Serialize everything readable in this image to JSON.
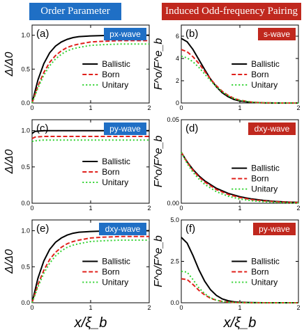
{
  "headers": {
    "left": "Order Parameter",
    "right": "Induced Odd-frequency Pairing"
  },
  "xlabel": "x/ξ_b",
  "ylabels": {
    "left": "Δ/Δ0",
    "right": "F^o/F^e_b"
  },
  "colors": {
    "ballistic": "#000000",
    "born": "#e0201b",
    "unitary": "#2fd22f",
    "blue_badge": "#1f6fc5",
    "red_badge": "#c0281e"
  },
  "chart_data": [
    {
      "panel": "(a)",
      "badge": "px-wave",
      "badge_color": "blue",
      "type": "line",
      "xlim": [
        0,
        2
      ],
      "ylim": [
        0,
        1.15
      ],
      "xticks": [
        "0",
        "1",
        "2"
      ],
      "yticks": [
        "0.0",
        "0.5",
        "1.0"
      ],
      "series": [
        {
          "name": "Ballistic",
          "x": [
            0,
            0.1,
            0.2,
            0.3,
            0.4,
            0.5,
            0.6,
            0.7,
            0.8,
            1.0,
            1.2,
            1.5,
            2.0
          ],
          "y": [
            0,
            0.34,
            0.58,
            0.74,
            0.84,
            0.9,
            0.94,
            0.965,
            0.98,
            0.99,
            0.995,
            1.0,
            1.0
          ]
        },
        {
          "name": "Born",
          "x": [
            0,
            0.1,
            0.2,
            0.3,
            0.4,
            0.5,
            0.6,
            0.7,
            0.8,
            1.0,
            1.2,
            1.5,
            2.0
          ],
          "y": [
            0,
            0.25,
            0.45,
            0.6,
            0.7,
            0.77,
            0.82,
            0.85,
            0.87,
            0.9,
            0.91,
            0.92,
            0.92
          ]
        },
        {
          "name": "Unitary",
          "x": [
            0,
            0.1,
            0.2,
            0.3,
            0.4,
            0.5,
            0.6,
            0.7,
            0.8,
            1.0,
            1.2,
            1.5,
            2.0
          ],
          "y": [
            0,
            0.22,
            0.41,
            0.55,
            0.65,
            0.72,
            0.77,
            0.8,
            0.82,
            0.85,
            0.86,
            0.87,
            0.87
          ]
        }
      ]
    },
    {
      "panel": "(b)",
      "badge": "s-wave",
      "badge_color": "red",
      "type": "line",
      "xlim": [
        0,
        2
      ],
      "ylim": [
        0,
        7
      ],
      "xticks": [
        "0",
        "1",
        "2"
      ],
      "yticks": [
        "0",
        "2",
        "4",
        "6"
      ],
      "series": [
        {
          "name": "Ballistic",
          "x": [
            0,
            0.1,
            0.2,
            0.3,
            0.4,
            0.5,
            0.6,
            0.7,
            0.8,
            0.9,
            1.0,
            1.2,
            1.4,
            1.6,
            2.0
          ],
          "y": [
            5.8,
            5.5,
            4.8,
            3.9,
            3.0,
            2.15,
            1.45,
            0.92,
            0.56,
            0.32,
            0.18,
            0.05,
            0.01,
            0,
            0
          ]
        },
        {
          "name": "Born",
          "x": [
            0,
            0.1,
            0.2,
            0.3,
            0.4,
            0.5,
            0.6,
            0.7,
            0.8,
            0.9,
            1.0,
            1.2,
            1.4,
            1.6,
            2.0
          ],
          "y": [
            4.8,
            4.6,
            4.15,
            3.55,
            2.85,
            2.15,
            1.55,
            1.05,
            0.68,
            0.42,
            0.25,
            0.08,
            0.02,
            0,
            0
          ]
        },
        {
          "name": "Unitary",
          "x": [
            0,
            0.1,
            0.2,
            0.3,
            0.4,
            0.5,
            0.6,
            0.7,
            0.8,
            0.9,
            1.0,
            1.2,
            1.4,
            1.6,
            2.0
          ],
          "y": [
            4.2,
            4.05,
            3.7,
            3.2,
            2.6,
            2.0,
            1.45,
            1.0,
            0.65,
            0.4,
            0.24,
            0.08,
            0.02,
            0,
            0
          ]
        }
      ]
    },
    {
      "panel": "(c)",
      "badge": "py-wave",
      "badge_color": "blue",
      "type": "line",
      "xlim": [
        0,
        2
      ],
      "ylim": [
        0,
        1.15
      ],
      "xticks": [
        "0",
        "1",
        "2"
      ],
      "yticks": [
        "0.0",
        "0.5",
        "1.0"
      ],
      "series": [
        {
          "name": "Ballistic",
          "x": [
            0,
            0.05,
            0.2,
            2.0
          ],
          "y": [
            0.96,
            0.99,
            1.0,
            1.0
          ]
        },
        {
          "name": "Born",
          "x": [
            0,
            0.05,
            0.2,
            2.0
          ],
          "y": [
            0.89,
            0.91,
            0.92,
            0.92
          ]
        },
        {
          "name": "Unitary",
          "x": [
            0,
            0.05,
            0.2,
            2.0
          ],
          "y": [
            0.85,
            0.86,
            0.87,
            0.87
          ]
        }
      ]
    },
    {
      "panel": "(d)",
      "badge": "dxy-wave",
      "badge_color": "red",
      "type": "line",
      "xlim": [
        0,
        2
      ],
      "ylim": [
        0,
        0.05
      ],
      "xticks": [
        "0",
        "1",
        "2"
      ],
      "yticks": [
        "0.00",
        "0.05"
      ],
      "series": [
        {
          "name": "Ballistic",
          "x": [
            0,
            0.1,
            0.2,
            0.3,
            0.4,
            0.6,
            0.8,
            1.0,
            1.2,
            1.4,
            1.6,
            1.8,
            2.0
          ],
          "y": [
            0.0305,
            0.0248,
            0.0202,
            0.0164,
            0.0134,
            0.0089,
            0.0059,
            0.0039,
            0.0026,
            0.0017,
            0.0011,
            0.0007,
            0.0005
          ]
        },
        {
          "name": "Born",
          "x": [
            0,
            0.1,
            0.2,
            0.3,
            0.4,
            0.6,
            0.8,
            1.0,
            1.2,
            1.4,
            1.6,
            1.8,
            2.0
          ],
          "y": [
            0.0305,
            0.0245,
            0.0197,
            0.0158,
            0.0127,
            0.0082,
            0.0053,
            0.0034,
            0.0022,
            0.0014,
            0.0009,
            0.0006,
            0.0004
          ]
        },
        {
          "name": "Unitary",
          "x": [
            0,
            0.1,
            0.2,
            0.3,
            0.4,
            0.6,
            0.8,
            1.0,
            1.2,
            1.4,
            1.6,
            1.8,
            2.0
          ],
          "y": [
            0.0305,
            0.0238,
            0.0186,
            0.0145,
            0.0113,
            0.0069,
            0.0042,
            0.0025,
            0.0015,
            0.0009,
            0.0006,
            0.0003,
            0.0002
          ]
        }
      ]
    },
    {
      "panel": "(e)",
      "badge": "dxy-wave",
      "badge_color": "blue",
      "type": "line",
      "xlim": [
        0,
        2
      ],
      "ylim": [
        0,
        1.15
      ],
      "xticks": [
        "0",
        "1",
        "2"
      ],
      "yticks": [
        "0.0",
        "0.5",
        "1.0"
      ],
      "series": [
        {
          "name": "Ballistic",
          "x": [
            0,
            0.1,
            0.2,
            0.3,
            0.4,
            0.5,
            0.6,
            0.7,
            0.8,
            1.0,
            1.2,
            1.5,
            2.0
          ],
          "y": [
            0,
            0.34,
            0.58,
            0.74,
            0.84,
            0.9,
            0.94,
            0.965,
            0.98,
            0.99,
            0.995,
            1.0,
            1.0
          ]
        },
        {
          "name": "Born",
          "x": [
            0,
            0.1,
            0.2,
            0.3,
            0.4,
            0.5,
            0.6,
            0.7,
            0.8,
            1.0,
            1.2,
            1.5,
            2.0
          ],
          "y": [
            0,
            0.25,
            0.45,
            0.6,
            0.7,
            0.77,
            0.82,
            0.85,
            0.87,
            0.9,
            0.91,
            0.92,
            0.92
          ]
        },
        {
          "name": "Unitary",
          "x": [
            0,
            0.1,
            0.2,
            0.3,
            0.4,
            0.5,
            0.6,
            0.7,
            0.8,
            1.0,
            1.2,
            1.5,
            2.0
          ],
          "y": [
            0,
            0.22,
            0.41,
            0.55,
            0.65,
            0.72,
            0.77,
            0.8,
            0.82,
            0.85,
            0.86,
            0.87,
            0.87
          ]
        }
      ]
    },
    {
      "panel": "(f)",
      "badge": "py-wave",
      "badge_color": "red",
      "type": "line",
      "xlim": [
        0,
        2
      ],
      "ylim": [
        0,
        5
      ],
      "xticks": [
        "0",
        "1",
        "2"
      ],
      "yticks": [
        "0.0",
        "2.5",
        "5.0"
      ],
      "series": [
        {
          "name": "Ballistic",
          "x": [
            0,
            0.1,
            0.2,
            0.3,
            0.4,
            0.5,
            0.6,
            0.7,
            0.8,
            0.9,
            1.0,
            1.2,
            1.4,
            2.0
          ],
          "y": [
            3.95,
            3.6,
            2.85,
            2.0,
            1.3,
            0.78,
            0.44,
            0.23,
            0.12,
            0.06,
            0.03,
            0.01,
            0,
            0
          ]
        },
        {
          "name": "Born",
          "x": [
            0,
            0.1,
            0.2,
            0.3,
            0.4,
            0.5,
            0.6,
            0.7,
            0.8,
            0.9,
            1.0,
            1.2,
            1.4,
            2.0
          ],
          "y": [
            1.45,
            1.4,
            1.1,
            0.75,
            0.47,
            0.27,
            0.15,
            0.08,
            0.04,
            0.02,
            0.01,
            0,
            0,
            0
          ]
        },
        {
          "name": "Unitary",
          "x": [
            0,
            0.1,
            0.2,
            0.3,
            0.4,
            0.5,
            0.6,
            0.7,
            0.8,
            0.9,
            1.0,
            1.2,
            1.4,
            2.0
          ],
          "y": [
            1.9,
            1.85,
            1.4,
            0.9,
            0.55,
            0.3,
            0.16,
            0.08,
            0.04,
            0.02,
            0.01,
            0,
            0,
            0
          ]
        }
      ]
    }
  ]
}
